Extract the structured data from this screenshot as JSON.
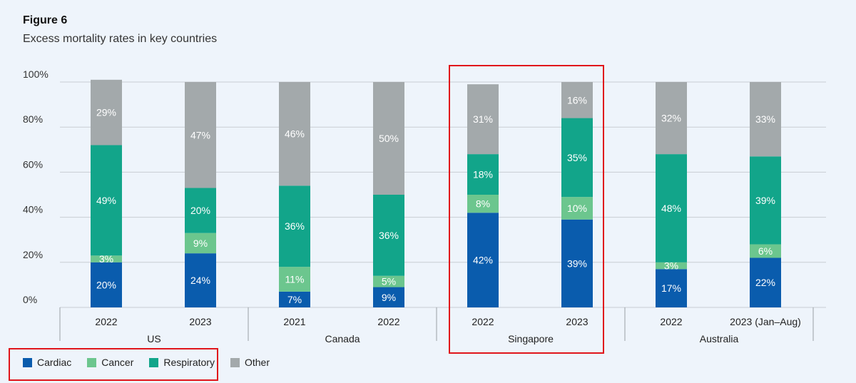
{
  "figure": {
    "label": "Figure 6",
    "subtitle": "Excess mortality rates in key countries"
  },
  "chart_data": {
    "type": "bar",
    "stacked": true,
    "title": "Excess mortality rates in key countries",
    "ylim": [
      0,
      100
    ],
    "y_ticks": [
      "0%",
      "20%",
      "40%",
      "60%",
      "80%",
      "100%"
    ],
    "groups": [
      "US",
      "Canada",
      "Singapore",
      "Australia"
    ],
    "categories": [
      {
        "label": "2022",
        "group": "US"
      },
      {
        "label": "2023",
        "group": "US"
      },
      {
        "label": "2021",
        "group": "Canada"
      },
      {
        "label": "2022",
        "group": "Canada"
      },
      {
        "label": "2022",
        "group": "Singapore"
      },
      {
        "label": "2023",
        "group": "Singapore"
      },
      {
        "label": "2022",
        "group": "Australia"
      },
      {
        "label": "2023 (Jan–Aug)",
        "group": "Australia"
      }
    ],
    "series": [
      {
        "name": "Cardiac",
        "color": "#0a5cad",
        "values": [
          20,
          24,
          7,
          9,
          42,
          39,
          17,
          22
        ]
      },
      {
        "name": "Cancer",
        "color": "#6cc68e",
        "values": [
          3,
          9,
          11,
          5,
          8,
          10,
          3,
          6
        ]
      },
      {
        "name": "Respiratory",
        "color": "#12a58a",
        "values": [
          49,
          20,
          36,
          36,
          18,
          35,
          48,
          39
        ]
      },
      {
        "name": "Other",
        "color": "#a3a9ab",
        "values": [
          29,
          47,
          46,
          50,
          31,
          16,
          32,
          33
        ]
      }
    ],
    "highlighted_group": "Singapore",
    "highlight_color": "#e0151b"
  },
  "colors": {
    "grid": "#c8cdd3",
    "axis": "#9aa0a6"
  }
}
